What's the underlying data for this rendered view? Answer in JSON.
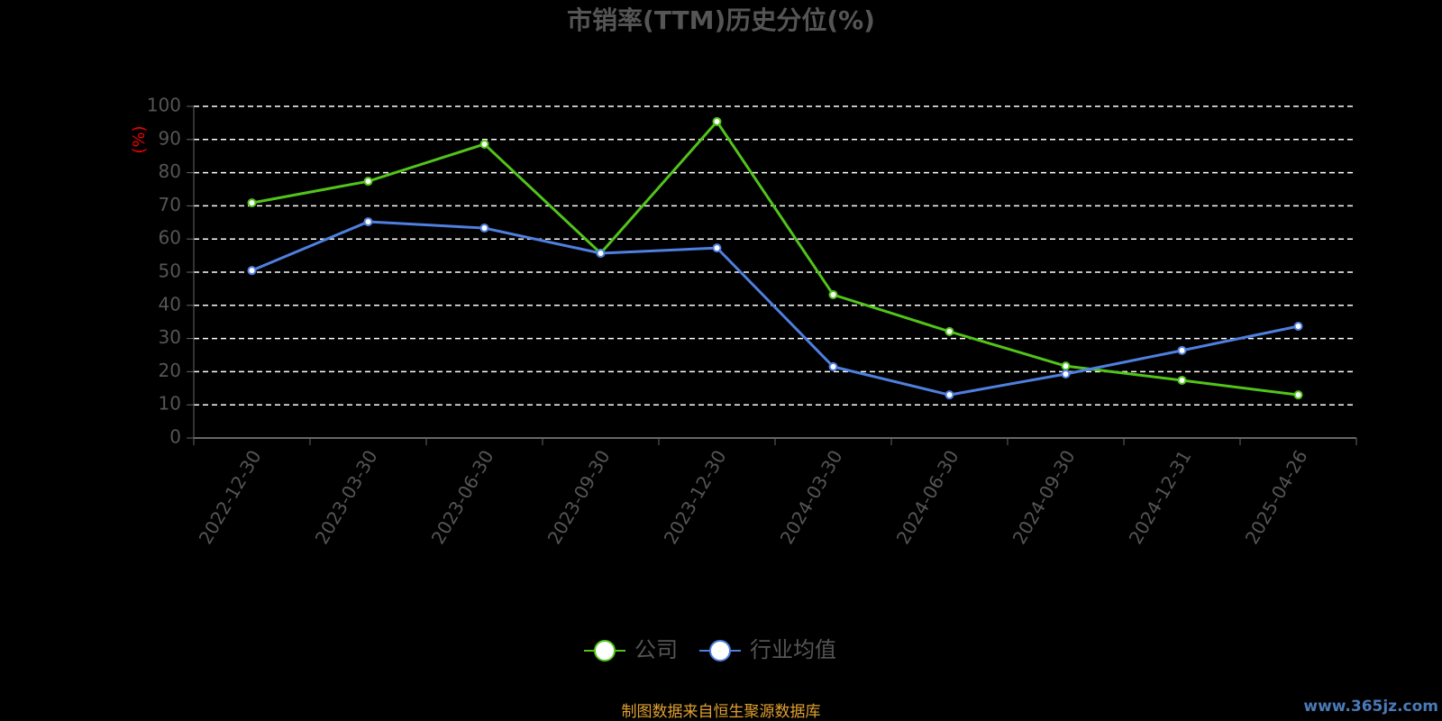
{
  "chart_data": {
    "type": "line",
    "title": "市销率(TTM)历史分位(%)",
    "y_label": "(%)",
    "categories": [
      "2022-12-30",
      "2023-03-30",
      "2023-06-30",
      "2023-09-30",
      "2023-12-30",
      "2024-03-30",
      "2024-06-30",
      "2024-09-30",
      "2024-12-31",
      "2025-04-26"
    ],
    "series": [
      {
        "name": "公司",
        "color": "#52c41a",
        "values": [
          70.9,
          77.4,
          88.6,
          55.7,
          95.4,
          43.2,
          32.1,
          21.7,
          17.4,
          13.0
        ]
      },
      {
        "name": "行业均值",
        "color": "#4f7fe0",
        "values": [
          50.5,
          65.2,
          63.3,
          55.7,
          57.3,
          21.5,
          13.0,
          19.3,
          26.4,
          33.7
        ]
      }
    ],
    "ylim": [
      0,
      100
    ],
    "yticks": [
      0,
      10,
      20,
      30,
      40,
      50,
      60,
      70,
      80,
      90,
      100
    ],
    "grid": true,
    "legend": "bottom",
    "source": "制图数据来自恒生聚源数据库",
    "watermark": "www.365jz.com"
  }
}
